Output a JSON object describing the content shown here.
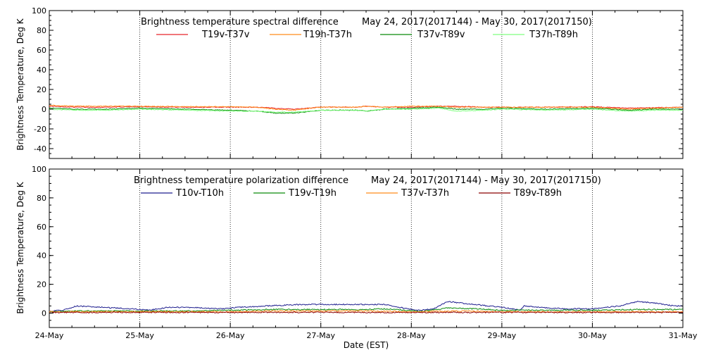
{
  "chart_data": [
    {
      "type": "line",
      "title": "Brightness temperature spectral difference",
      "date_range": "May 24, 2017(2017144) - May 30, 2017(2017150)",
      "ylabel": "Brightness Temperature, Deg K",
      "ylim": [
        -50,
        100
      ],
      "yticks": [
        "-40",
        "-20",
        "0",
        "20",
        "40",
        "60",
        "80",
        "100"
      ],
      "grid": "vertical dotted at day boundaries",
      "legend_position": "top",
      "series": [
        {
          "name": "T19v-T37v",
          "color": "#e8252b",
          "x": [
            0,
            0.3,
            0.6,
            1,
            1.5,
            2,
            2.3,
            2.5,
            2.7,
            3,
            3.4,
            3.5,
            3.7,
            4,
            4.3,
            4.5,
            4.8,
            5,
            5.5,
            6,
            6.4,
            6.7,
            7
          ],
          "y": [
            3,
            2,
            2,
            2.5,
            2,
            2,
            2,
            1,
            0,
            2,
            2,
            3,
            2,
            2,
            3,
            3,
            2,
            2,
            2,
            2.5,
            1,
            1.5,
            2
          ]
        },
        {
          "name": "T19h-T37h",
          "color": "#ff8c1a",
          "x": [
            0,
            0.3,
            0.6,
            1,
            1.5,
            2,
            2.3,
            2.5,
            2.7,
            3,
            3.4,
            3.5,
            3.7,
            4,
            4.3,
            4.5,
            4.8,
            5,
            5.5,
            6,
            6.4,
            6.7,
            7
          ],
          "y": [
            4,
            3,
            3,
            3,
            2.5,
            2.5,
            2,
            0,
            -1,
            2,
            2,
            3,
            2,
            3,
            3,
            2,
            2,
            2,
            2,
            2,
            0,
            1,
            2
          ]
        },
        {
          "name": "T37v-T89v",
          "color": "#0a8a0a",
          "x": [
            0,
            0.3,
            0.6,
            1,
            1.5,
            2,
            2.3,
            2.5,
            2.7,
            3,
            3.4,
            3.5,
            3.7,
            4,
            4.3,
            4.5,
            4.8,
            5,
            5.5,
            6,
            6.4,
            6.7,
            7
          ],
          "y": [
            1,
            0,
            0,
            1,
            0,
            -1,
            -2,
            -4,
            -4,
            -1,
            -1,
            -2,
            0,
            1,
            2,
            0,
            0,
            1,
            0,
            1,
            -1,
            0,
            0
          ]
        },
        {
          "name": "T37h-T89h",
          "color": "#7fff7f",
          "x": [
            0,
            0.3,
            0.6,
            1,
            1.5,
            2,
            2.3,
            2.5,
            2.7,
            3,
            3.4,
            3.5,
            3.7,
            4,
            4.3,
            4.5,
            4.8,
            5,
            5.5,
            6,
            6.4,
            6.7,
            7
          ],
          "y": [
            0,
            -1,
            -1,
            0,
            -1,
            -2,
            -2,
            -3,
            -3,
            -1,
            -1,
            -2,
            0,
            0,
            1,
            -2,
            -1,
            0,
            -1,
            0,
            -2,
            -1,
            -1
          ]
        }
      ]
    },
    {
      "type": "line",
      "title": "Brightness temperature polarization difference",
      "date_range": "May 24, 2017(2017144) - May 30, 2017(2017150)",
      "ylabel": "Brightness Temperature, Deg K",
      "xlabel": "Date (EST)",
      "ylim": [
        -10,
        100
      ],
      "yticks": [
        "0",
        "20",
        "40",
        "60",
        "80",
        "100"
      ],
      "categories": [
        "24-May",
        "25-May",
        "26-May",
        "27-May",
        "28-May",
        "29-May",
        "30-May",
        "31-May"
      ],
      "grid": "vertical dotted at day boundaries",
      "legend_position": "top",
      "series": [
        {
          "name": "T10v-T10h",
          "color": "#1f1f8f",
          "x": [
            0,
            0.15,
            0.3,
            0.6,
            0.9,
            1.1,
            1.3,
            1.6,
            1.9,
            2.1,
            2.4,
            2.8,
            3.2,
            3.5,
            3.7,
            3.95,
            4.1,
            4.25,
            4.4,
            4.7,
            5,
            5.2,
            5.25,
            5.4,
            5.7,
            6,
            6.3,
            6.5,
            6.7,
            6.9,
            7
          ],
          "y": [
            1.5,
            2,
            5,
            4,
            3,
            2,
            4,
            4,
            3,
            4,
            5,
            6,
            6,
            6,
            6,
            3,
            2,
            3,
            8,
            6,
            4,
            2,
            5,
            4,
            3,
            3,
            5,
            8,
            7,
            5,
            5
          ]
        },
        {
          "name": "T19v-T19h",
          "color": "#0a8a0a",
          "x": [
            0,
            0.3,
            0.6,
            1,
            1.5,
            2,
            2.4,
            2.8,
            3.2,
            3.5,
            3.7,
            3.95,
            4.1,
            4.4,
            4.7,
            5,
            5.5,
            6,
            6.5,
            7
          ],
          "y": [
            1,
            1.5,
            1.5,
            1.5,
            1.5,
            2,
            2.5,
            2.5,
            2.5,
            2.5,
            3,
            2,
            1,
            3.5,
            3,
            2,
            2,
            2,
            2.5,
            2.5
          ]
        },
        {
          "name": "T37v-T37h",
          "color": "#ff8c1a",
          "x": [
            0,
            0.5,
            1,
            1.5,
            2,
            2.5,
            3,
            3.5,
            4,
            4.5,
            5,
            5.5,
            6,
            6.5,
            7
          ],
          "y": [
            1,
            1,
            1,
            1,
            1,
            1.5,
            1.5,
            1.5,
            1,
            1.5,
            1,
            1,
            1,
            1,
            1
          ]
        },
        {
          "name": "T89v-T89h",
          "color": "#8b0000",
          "x": [
            0,
            0.5,
            1,
            1.5,
            2,
            2.5,
            3,
            3.5,
            4,
            4.5,
            5,
            5.5,
            6,
            6.5,
            7
          ],
          "y": [
            0.5,
            0.5,
            0.5,
            0.5,
            0.5,
            0.5,
            0.5,
            0.5,
            0.5,
            0.5,
            0.5,
            0.5,
            0.5,
            0.5,
            0.5
          ]
        }
      ]
    }
  ]
}
